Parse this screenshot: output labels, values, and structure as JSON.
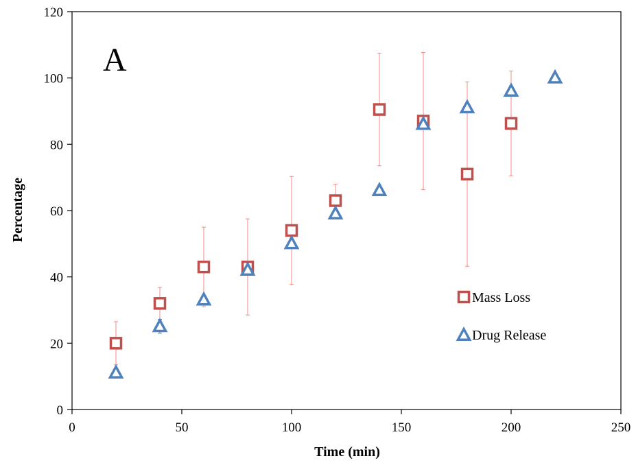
{
  "chart_data": {
    "type": "scatter",
    "panel_label": "A",
    "xlabel": "Time (min)",
    "ylabel": "Percentage",
    "xlim": [
      0,
      250
    ],
    "ylim": [
      0,
      120
    ],
    "x_ticks": [
      "0",
      "50",
      "100",
      "150",
      "200",
      "250"
    ],
    "y_ticks": [
      "0",
      "20",
      "40",
      "60",
      "80",
      "100",
      "120"
    ],
    "grid": false,
    "legend_position": "right",
    "series": [
      {
        "name": "Mass Loss",
        "marker": "square",
        "color": "#c0504d",
        "errorbar_color": "#f28b82",
        "x": [
          20,
          40,
          60,
          80,
          100,
          120,
          140,
          160,
          180,
          200
        ],
        "y": [
          20,
          32,
          43,
          43,
          54,
          63,
          90.5,
          87,
          71,
          86.3
        ],
        "error": [
          6.5,
          4.8,
          12,
          14.5,
          16.3,
          5,
          17,
          20.7,
          27.8,
          15.8
        ]
      },
      {
        "name": "Drug Release",
        "marker": "triangle",
        "color": "#4f81bd",
        "errorbar_color": "#4f81bd",
        "x": [
          20,
          40,
          60,
          80,
          100,
          120,
          140,
          160,
          180,
          200,
          220
        ],
        "y": [
          11,
          25,
          33,
          42,
          50,
          59,
          66,
          86,
          91,
          96,
          100
        ],
        "error": [
          1.5,
          2,
          0.5,
          0.5,
          0.5,
          1.5,
          0.5,
          0.5,
          0.5,
          1.5,
          0.3
        ]
      }
    ]
  }
}
